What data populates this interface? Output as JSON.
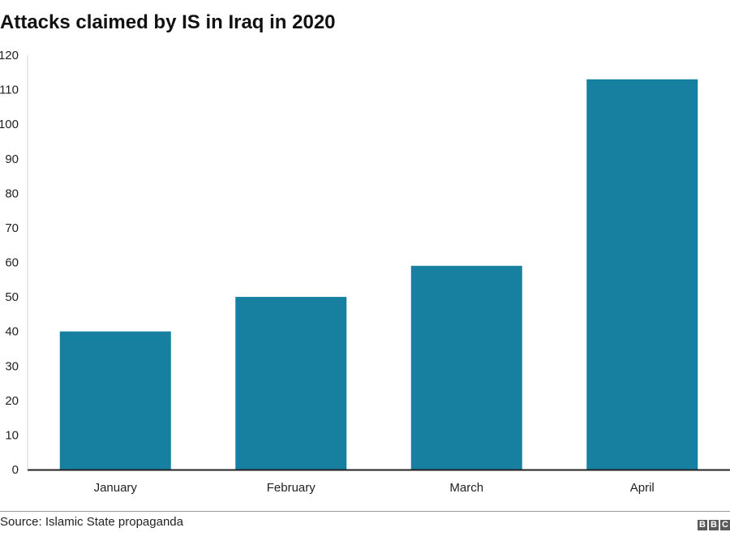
{
  "title": "Attacks claimed by IS in Iraq in 2020",
  "source": "Source: Islamic State propaganda",
  "logo": {
    "letters": [
      "B",
      "B",
      "C"
    ]
  },
  "colors": {
    "bar": "#1780a1",
    "axis": "#222222",
    "text": "#222222"
  },
  "chart_data": {
    "type": "bar",
    "title": "Attacks claimed by IS in Iraq in 2020",
    "categories": [
      "January",
      "February",
      "March",
      "April"
    ],
    "values": [
      40,
      50,
      59,
      113
    ],
    "ylim": [
      0,
      120
    ],
    "yticks": [
      0,
      10,
      20,
      30,
      40,
      50,
      60,
      70,
      80,
      90,
      100,
      110,
      120
    ],
    "grid": false,
    "xlabel": "",
    "ylabel": ""
  }
}
